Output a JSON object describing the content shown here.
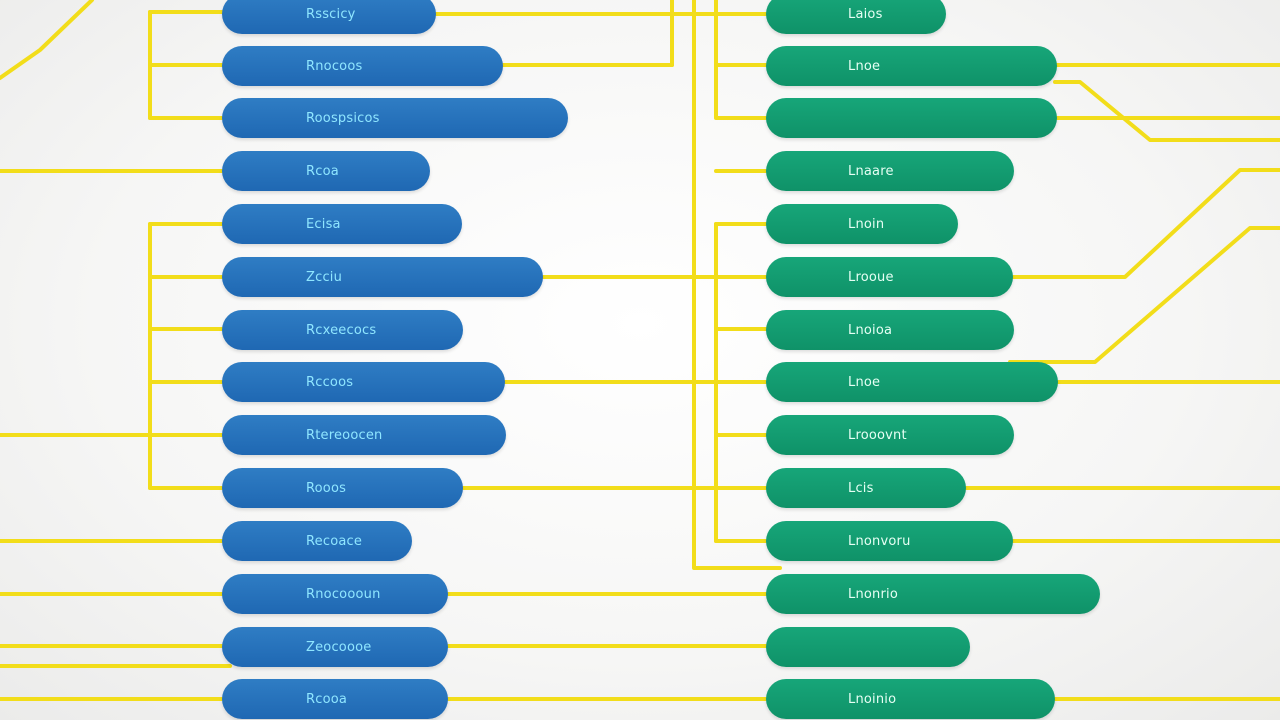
{
  "colors": {
    "background": "#f4f4f3",
    "connector": "#f2dd1a",
    "left_node": "#236fb8",
    "left_text": "#8fe6ff",
    "right_node": "#12a072",
    "right_text": "#e6fff4"
  },
  "left_nodes": [
    {
      "label": "Rsscicy"
    },
    {
      "label": "Rnocoos"
    },
    {
      "label": "Roospsicos"
    },
    {
      "label": "Rcoa"
    },
    {
      "label": "Ecisa"
    },
    {
      "label": "Zcciu"
    },
    {
      "label": "Rcxeecocs"
    },
    {
      "label": "Rccoos"
    },
    {
      "label": "Rtereoocen"
    },
    {
      "label": "Rooos"
    },
    {
      "label": "Recoace"
    },
    {
      "label": "Rnocoooun"
    },
    {
      "label": "Zeocoooe"
    },
    {
      "label": "Rcooa"
    }
  ],
  "right_nodes": [
    {
      "label": "Laios"
    },
    {
      "label": "Lnoe"
    },
    {
      "label": ""
    },
    {
      "label": "Lnaare"
    },
    {
      "label": "Lnoin"
    },
    {
      "label": "Lrooue"
    },
    {
      "label": "Lnoioa"
    },
    {
      "label": "Lnoe"
    },
    {
      "label": "Lrooovnt"
    },
    {
      "label": "Lcis"
    },
    {
      "label": "Lnonvoru"
    },
    {
      "label": "Lnonrio"
    },
    {
      "label": ""
    },
    {
      "label": "Lnoinio"
    }
  ]
}
